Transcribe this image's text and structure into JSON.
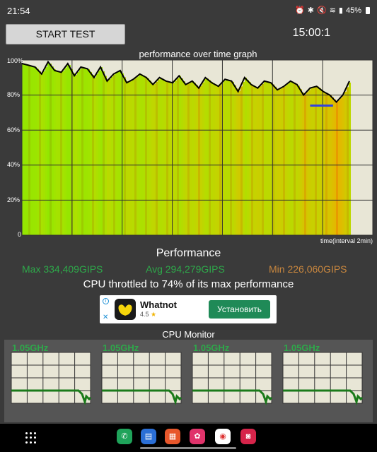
{
  "statusbar": {
    "time": "21:54",
    "battery": "45%"
  },
  "controls": {
    "start_label": "START TEST",
    "timer": "15:00:1"
  },
  "graph": {
    "title": "performance over time graph",
    "y_ticks": [
      "100%",
      "80%",
      "60%",
      "40%",
      "20%",
      "0"
    ],
    "x_note": "time(interval 2min)"
  },
  "performance": {
    "title": "Performance",
    "max": "Max 334,409GIPS",
    "avg": "Avg 294,279GIPS",
    "min": "Min 226,060GIPS",
    "throttle": "CPU throttled to 74% of its max performance"
  },
  "ad": {
    "app_name": "Whatnot",
    "rating": "4.5",
    "star": "★",
    "button": "Установить",
    "info": "i",
    "close": "✕"
  },
  "cpu_monitor": {
    "title": "CPU Monitor",
    "cores": [
      {
        "freq": "1.05GHz"
      },
      {
        "freq": "1.05GHz"
      },
      {
        "freq": "1.05GHz"
      },
      {
        "freq": "1.05GHz"
      }
    ]
  },
  "chart_data": {
    "type": "line",
    "title": "performance over time graph",
    "xlabel": "time(interval 2min)",
    "ylabel": "",
    "ylim": [
      0,
      100
    ],
    "x": [
      0,
      2,
      4,
      6,
      8,
      10,
      12,
      14,
      16,
      18,
      20,
      22,
      24,
      26,
      28,
      30,
      32,
      34,
      36,
      38,
      40,
      42,
      44,
      46,
      48,
      50,
      52,
      54,
      56,
      58,
      60,
      62,
      64,
      66,
      68,
      70,
      72,
      74,
      76,
      78,
      80,
      82,
      84,
      86,
      88,
      90,
      92,
      94,
      96,
      98,
      100
    ],
    "series": [
      {
        "values": [
          98,
          97,
          96,
          92,
          99,
          94,
          93,
          98,
          91,
          96,
          95,
          90,
          96,
          88,
          92,
          94,
          87,
          89,
          92,
          90,
          86,
          90,
          88,
          87,
          91,
          86,
          88,
          84,
          90,
          87,
          85,
          89,
          88,
          82,
          90,
          86,
          84,
          88,
          87,
          83,
          85,
          88,
          86,
          80,
          84,
          85,
          82,
          80,
          76,
          80,
          88
        ]
      }
    ],
    "reference_line": {
      "value": 74
    }
  },
  "colors": {
    "bg": "#3a3a3a",
    "plot_bg": "#e8e6d6",
    "green": "#2ea84a",
    "orange": "#c9873e",
    "line": "#000000",
    "ref_line": "#3344dd"
  },
  "dock": [
    "phone-icon",
    "messages-icon",
    "store-icon",
    "gallery-icon",
    "chrome-icon",
    "camera-icon"
  ]
}
